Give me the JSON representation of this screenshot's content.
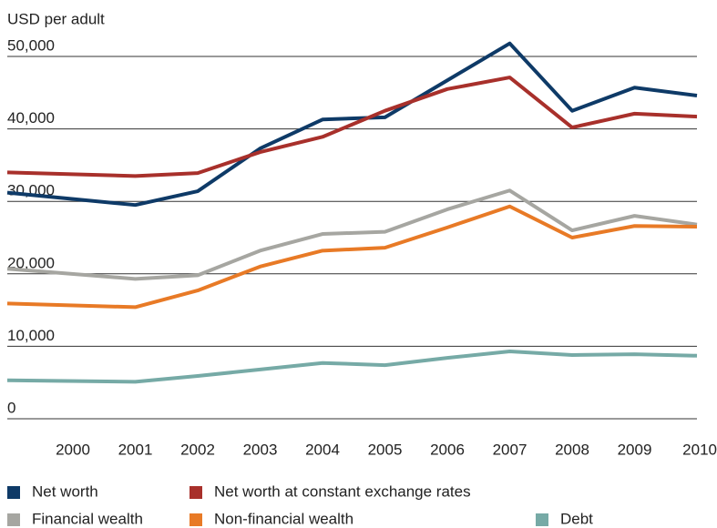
{
  "chart_data": {
    "type": "line",
    "y_label": "USD per adult",
    "categories": [
      "2000",
      "2001",
      "2002",
      "2003",
      "2004",
      "2005",
      "2006",
      "2007",
      "2008",
      "2009",
      "2010"
    ],
    "series": [
      {
        "name": "Net worth",
        "color": "#0e3a67",
        "values": [
          31200,
          29500,
          31400,
          37300,
          41300,
          41600,
          46700,
          51800,
          42500,
          45700,
          44600
        ]
      },
      {
        "name": "Net worth at constant exchange rates",
        "color": "#a8302b",
        "values": [
          34000,
          33500,
          33900,
          36800,
          38900,
          42500,
          45500,
          47100,
          40200,
          42100,
          41700
        ]
      },
      {
        "name": "Financial wealth",
        "color": "#a6a6a1",
        "values": [
          20700,
          19300,
          19800,
          23200,
          25500,
          25800,
          28900,
          31500,
          26000,
          28000,
          26800
        ]
      },
      {
        "name": "Non-financial wealth",
        "color": "#e87a26",
        "values": [
          15900,
          15400,
          17700,
          21000,
          23200,
          23600,
          26400,
          29300,
          25000,
          26600,
          26500
        ]
      },
      {
        "name": "Debt",
        "color": "#76aaa6",
        "values": [
          5300,
          5100,
          5900,
          6800,
          7700,
          7400,
          8400,
          9300,
          8800,
          8900,
          8700
        ]
      }
    ],
    "ylim": [
      0,
      50000
    ],
    "yticks": [
      0,
      {
        "value": 10000,
        "label": "10,000"
      },
      {
        "value": 20000,
        "label": "20,000"
      },
      {
        "value": 30000,
        "label": "30,000"
      },
      {
        "value": 40000,
        "label": "40,000"
      },
      {
        "value": 50000,
        "label": "50,000"
      }
    ],
    "grid": true
  }
}
